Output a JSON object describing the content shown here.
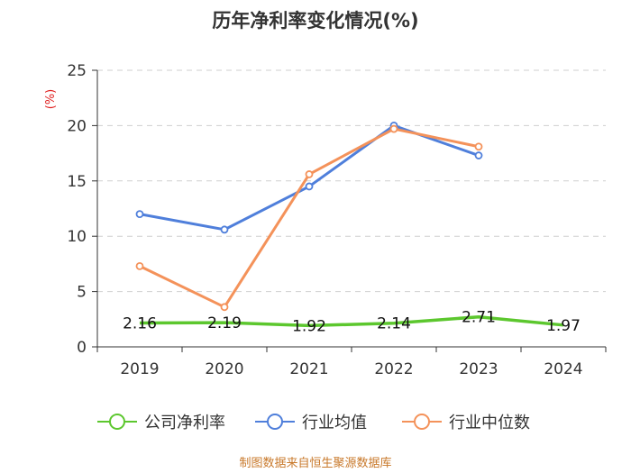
{
  "chart_data": {
    "type": "line",
    "title": "历年净利率变化情况(%)",
    "ylabel": "(%)",
    "categories": [
      "2019",
      "2020",
      "2021",
      "2022",
      "2023",
      "2024"
    ],
    "ylim": [
      0,
      25
    ],
    "yticks": [
      0,
      5,
      10,
      15,
      20,
      25
    ],
    "grid": true,
    "legend_position": "bottom",
    "series": [
      {
        "name": "公司净利率",
        "color": "#5cc72e",
        "values": [
          2.16,
          2.19,
          1.92,
          2.14,
          2.71,
          1.97
        ],
        "labels": [
          "2.16",
          "2.19",
          "1.92",
          "2.14",
          "2.71",
          "1.97"
        ]
      },
      {
        "name": "行业均值",
        "color": "#4f7fdb",
        "values": [
          12.0,
          10.6,
          14.5,
          20.0,
          17.3,
          null
        ]
      },
      {
        "name": "行业中位数",
        "color": "#f4925a",
        "values": [
          7.3,
          3.6,
          15.6,
          19.7,
          18.1,
          null
        ]
      }
    ],
    "source": "制图数据来自恒生聚源数据库"
  }
}
